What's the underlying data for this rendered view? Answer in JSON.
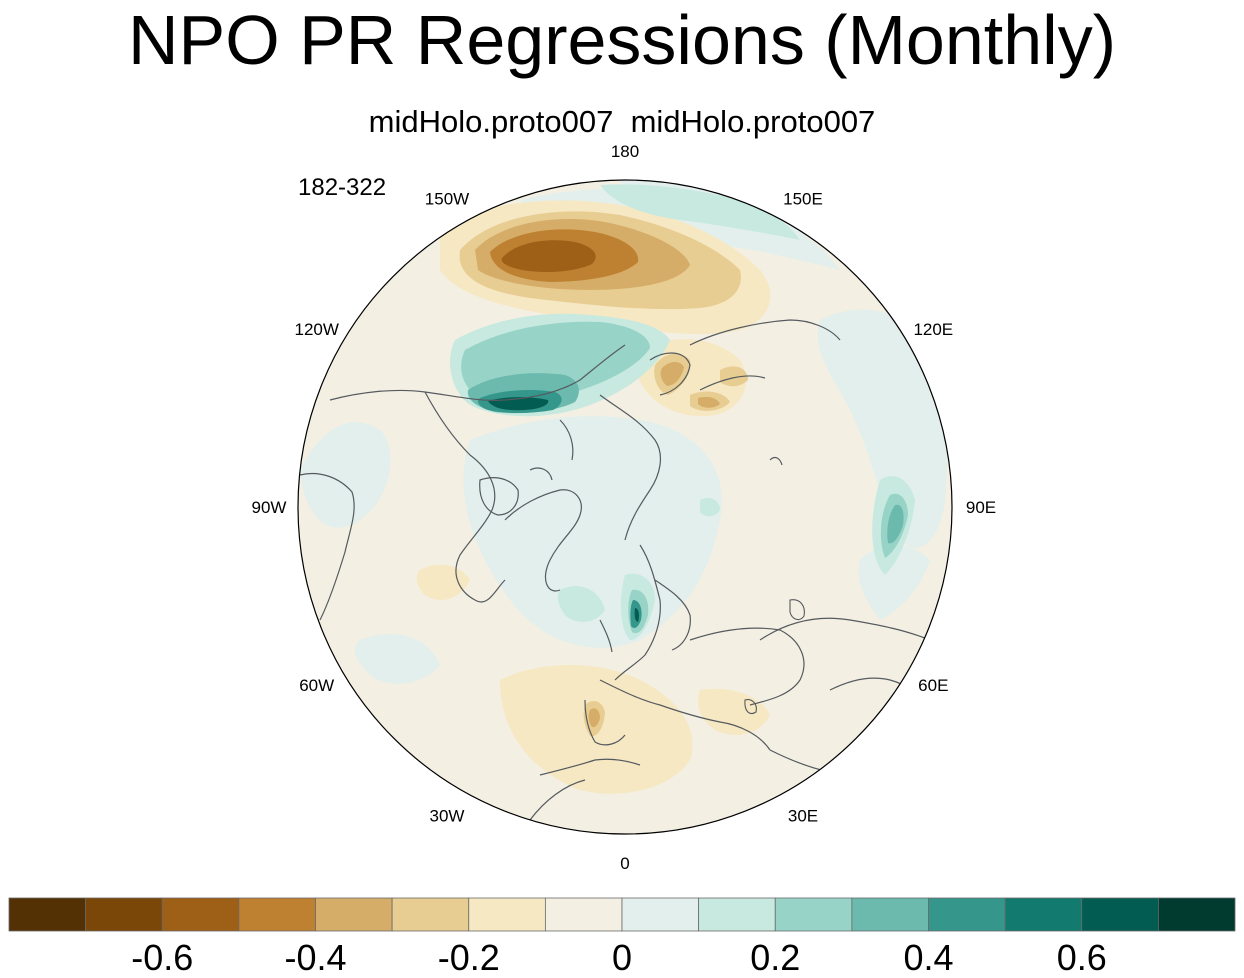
{
  "title": "NPO PR Regressions (Monthly)",
  "subtitle": "midHolo.proto007  midHolo.proto007",
  "years_label": "182-322",
  "longitude_labels": [
    "180",
    "150E",
    "120E",
    "90E",
    "60E",
    "30E",
    "0",
    "30W",
    "60W",
    "90W",
    "120W",
    "150W"
  ],
  "colors": {
    "land_outline": "#555a5f",
    "background_fill": "#f4efe3",
    "palette": [
      "#543005",
      "#7b4709",
      "#9e5f16",
      "#be8132",
      "#d6ad68",
      "#e8cd93",
      "#f6e8c3",
      "#f4efe3",
      "#e2efec",
      "#c7e9e0",
      "#97d4c7",
      "#6cb9ad",
      "#35968b",
      "#137a6f",
      "#025c51",
      "#013b30"
    ]
  },
  "colorbar": {
    "tick_labels": [
      "-0.6",
      "-0.4",
      "-0.2",
      "0",
      "0.2",
      "0.4",
      "0.6"
    ],
    "levels": [
      -0.7,
      -0.6,
      -0.5,
      -0.4,
      -0.3,
      -0.2,
      -0.1,
      0,
      0.1,
      0.2,
      0.3,
      0.4,
      0.5,
      0.6,
      0.7
    ]
  },
  "anomalies": [
    {
      "name": "north-pacific-dry-core",
      "level": -0.6
    },
    {
      "name": "north-pacific-dry",
      "level": -0.4
    },
    {
      "name": "north-pacific-wet-band",
      "level": 0.5
    },
    {
      "name": "okhotsk-dry",
      "level": -0.4
    },
    {
      "name": "bay-of-bengal-wet",
      "level": 0.5
    },
    {
      "name": "norway-wet",
      "level": 0.6
    },
    {
      "name": "iberia-dry",
      "level": -0.3
    }
  ]
}
